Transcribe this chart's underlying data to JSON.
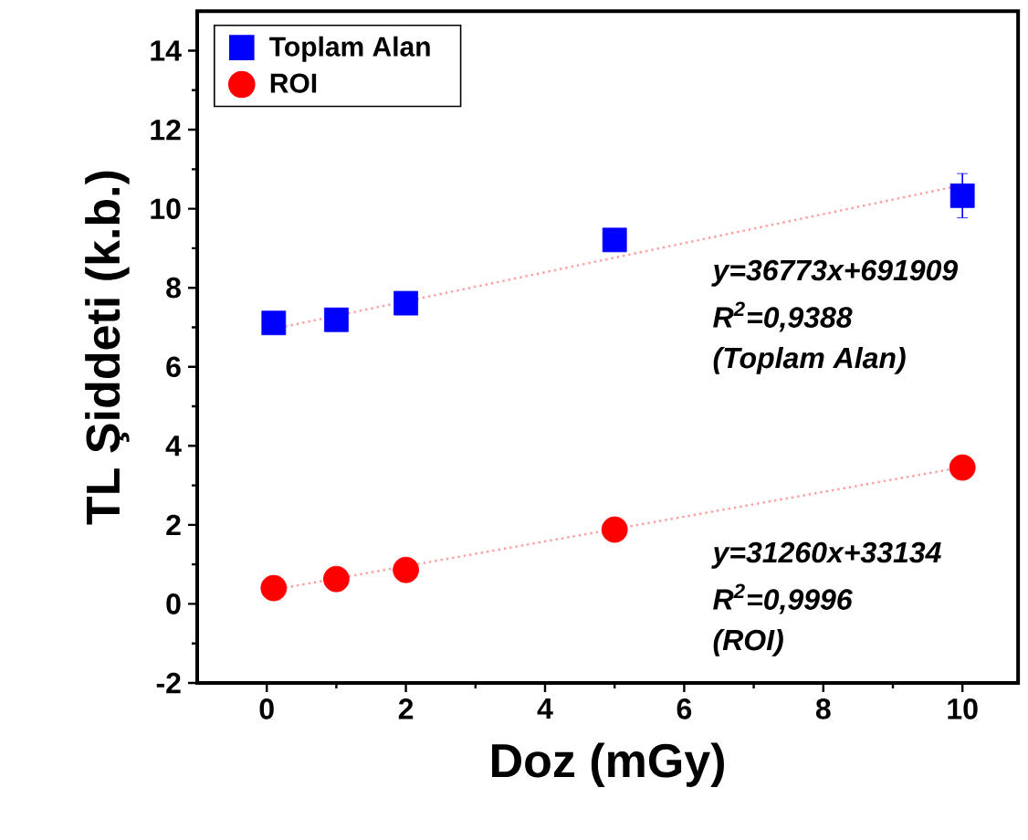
{
  "chart_data": {
    "type": "scatter",
    "xlabel": "Doz (mGy)",
    "ylabel": "TL Şiddeti (k.b.)",
    "xlim": [
      -1,
      10.8
    ],
    "ylim": [
      -2,
      15
    ],
    "xticks": [
      0,
      2,
      4,
      6,
      8,
      10
    ],
    "yticks": [
      -2,
      0,
      2,
      4,
      6,
      8,
      10,
      12,
      14
    ],
    "legend": "top left",
    "grid": false,
    "series": [
      {
        "name": "Toplam Alan",
        "color": "#0000ff",
        "marker": "square",
        "x": [
          0.1,
          1,
          2,
          5,
          10
        ],
        "values": [
          7.11,
          7.19,
          7.61,
          9.21,
          10.33
        ],
        "errors": [
          null,
          null,
          null,
          null,
          0.56
        ]
      },
      {
        "name": "ROI",
        "color": "#ff0000",
        "marker": "circle",
        "x": [
          0.1,
          1,
          2,
          5,
          10
        ],
        "values": [
          0.4,
          0.63,
          0.86,
          1.88,
          3.45
        ]
      },
      {
        "type": "line",
        "color": "#ff9c9c",
        "marker": "none",
        "line_style": "dotted",
        "x": [
          0.1,
          10
        ],
        "values": [
          6.96,
          10.6
        ]
      },
      {
        "type": "line",
        "color": "#ff9c9c",
        "marker": "none",
        "line_style": "dotted",
        "x": [
          0.1,
          10
        ],
        "values": [
          0.36,
          3.46
        ]
      }
    ],
    "annotations": [
      "y=36773x+691909",
      "R$^{2}$=0,9388",
      "(Toplam Alan)",
      "y=31260x+33134",
      "R$^{2}$=0,9996",
      "(ROI)"
    ]
  }
}
